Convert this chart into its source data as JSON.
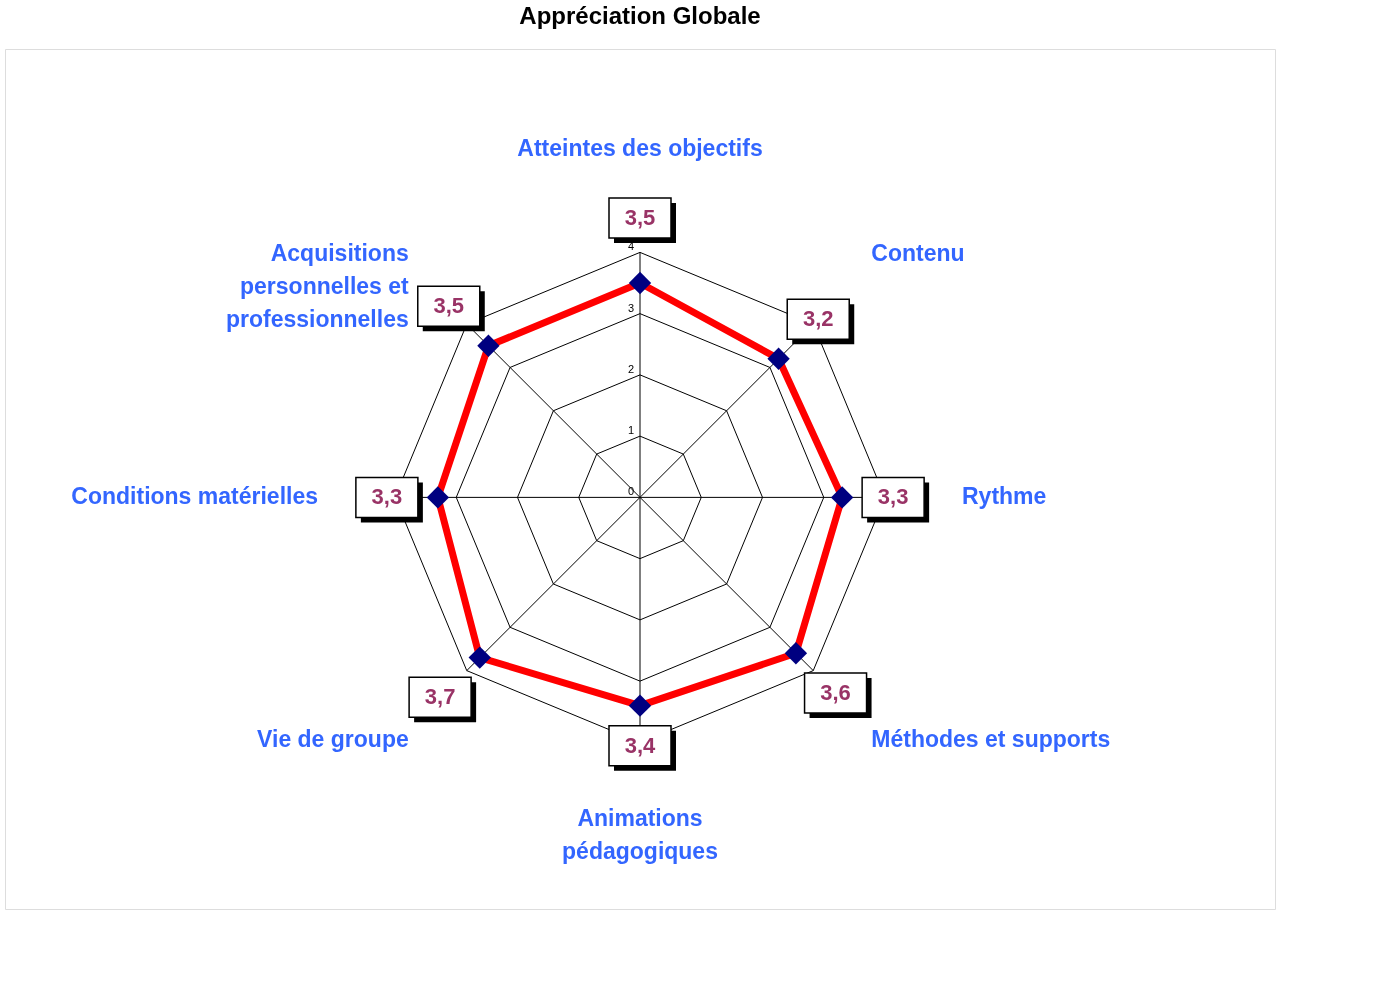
{
  "chart_data": {
    "type": "radar",
    "title": "Appréciation Globale",
    "categories": [
      "Atteintes des objectifs",
      "Contenu",
      "Rythme",
      "Méthodes et supports",
      "Animations pédagogiques",
      "Vie de groupe",
      "Conditions matérielles",
      "Acquisitions personnelles et professionnelles"
    ],
    "series": [
      {
        "color": "#ff0000",
        "values": [
          3.5,
          3.2,
          3.3,
          3.6,
          3.4,
          3.7,
          3.3,
          3.5
        ],
        "value_labels": [
          "3,5",
          "3,2",
          "3,3",
          "3,6",
          "3,4",
          "3,7",
          "3,3",
          "3,5"
        ]
      }
    ],
    "ylim": [
      0,
      4
    ],
    "yticks": [
      0,
      1,
      2,
      3,
      4
    ],
    "grid": true,
    "marker": "diamond"
  }
}
